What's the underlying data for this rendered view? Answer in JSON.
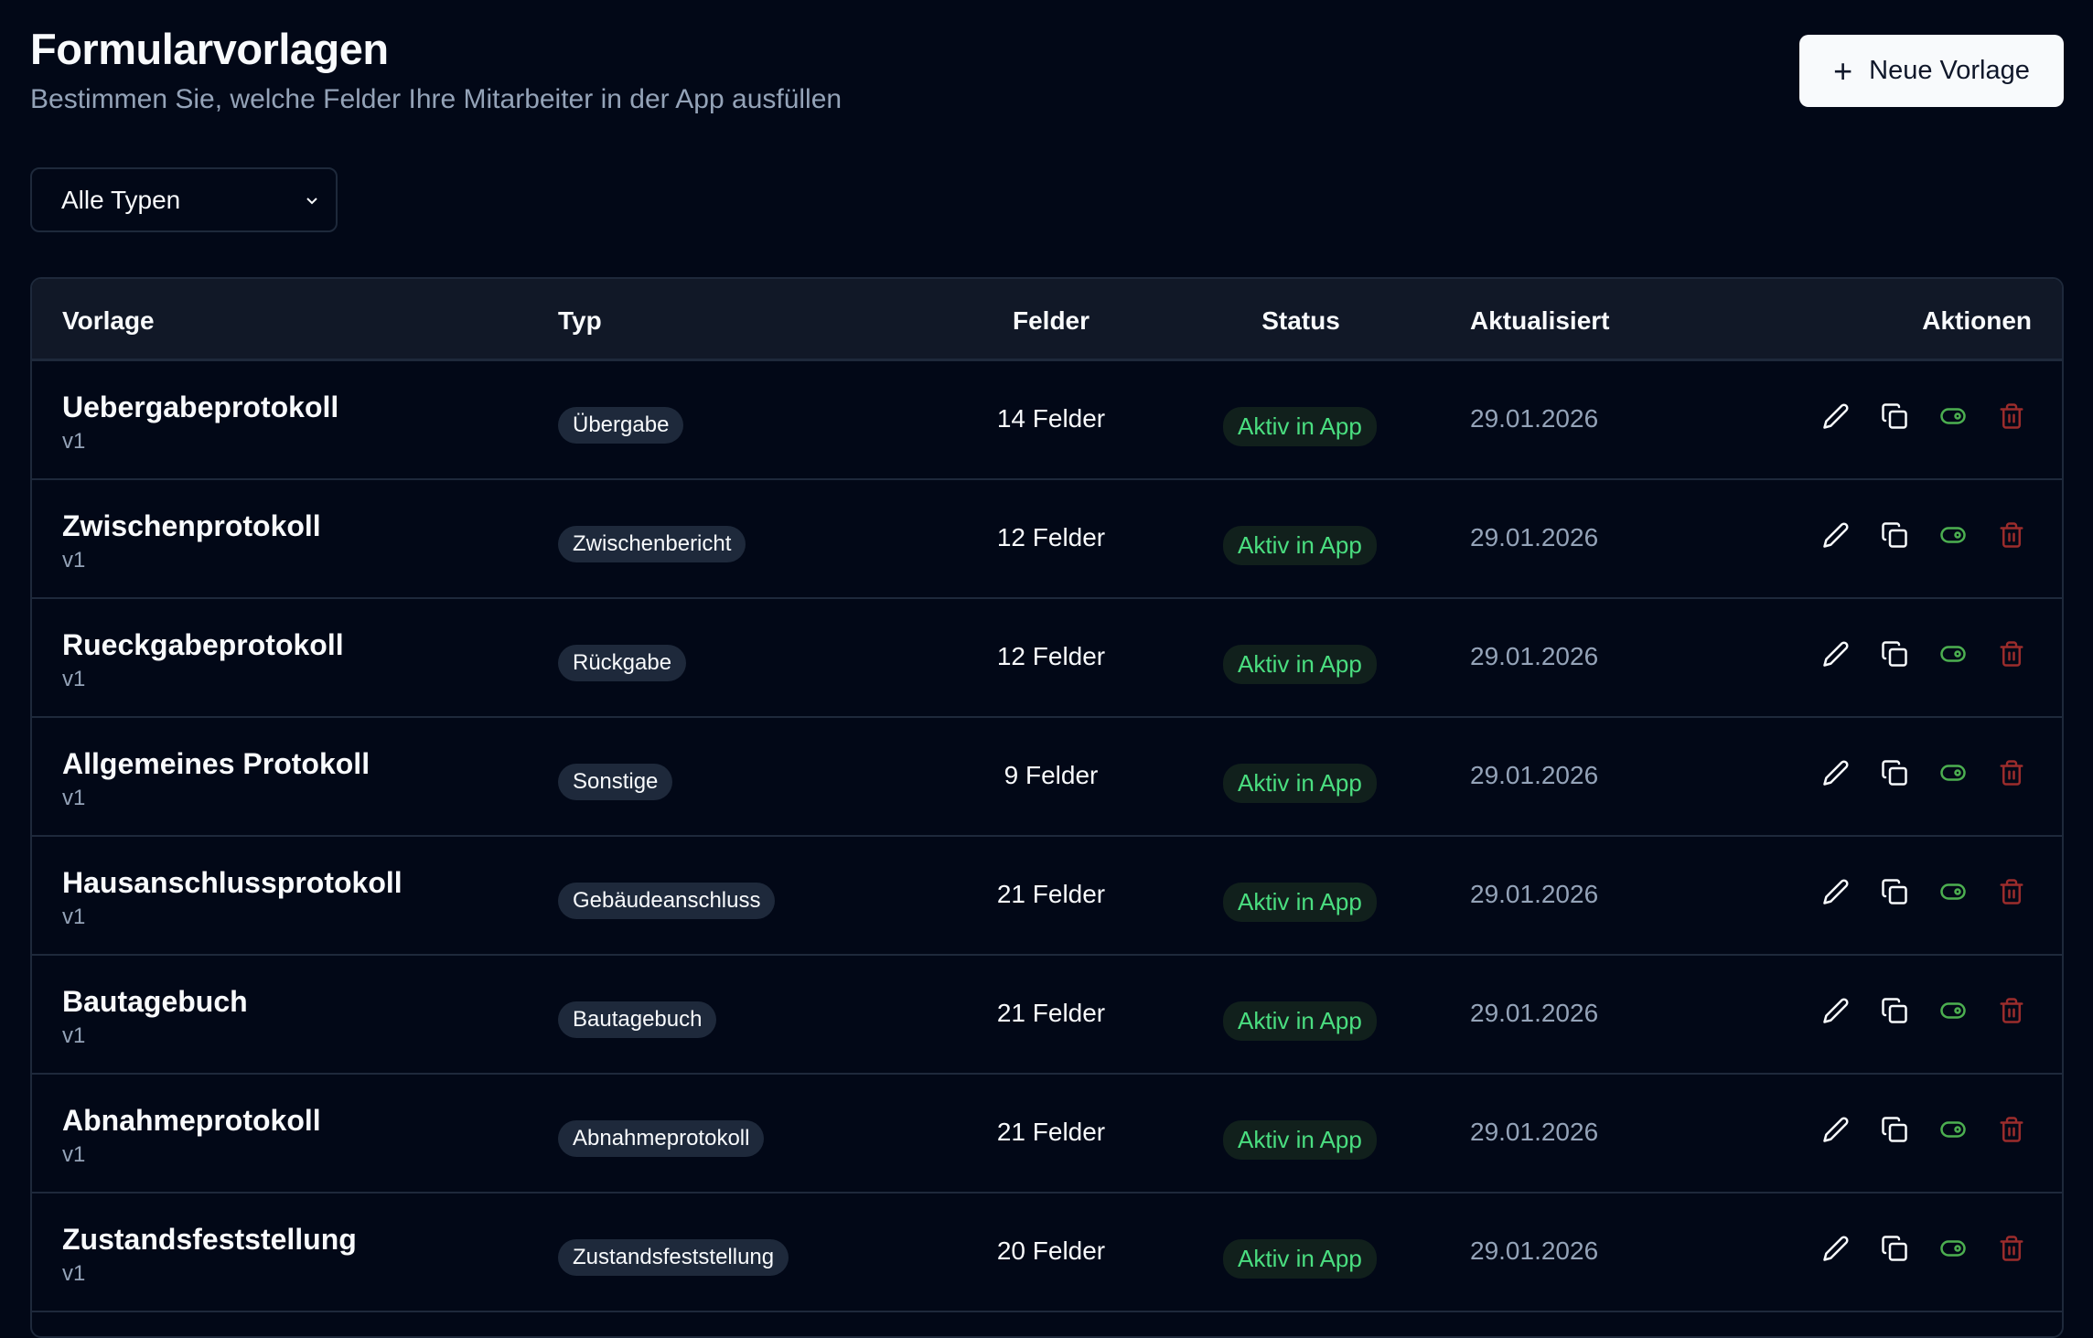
{
  "header": {
    "title": "Formularvorlagen",
    "subtitle": "Bestimmen Sie, welche Felder Ihre Mitarbeiter in der App ausfüllen",
    "new_button": "Neue Vorlage"
  },
  "filter": {
    "selected": "Alle Typen"
  },
  "table": {
    "columns": [
      "Vorlage",
      "Typ",
      "Felder",
      "Status",
      "Aktualisiert",
      "Aktionen"
    ],
    "rows": [
      {
        "name": "Uebergabeprotokoll",
        "version": "v1",
        "type": "Übergabe",
        "fields": "14 Felder",
        "status": "Aktiv in App",
        "updated": "29.01.2026"
      },
      {
        "name": "Zwischenprotokoll",
        "version": "v1",
        "type": "Zwischenbericht",
        "fields": "12 Felder",
        "status": "Aktiv in App",
        "updated": "29.01.2026"
      },
      {
        "name": "Rueckgabeprotokoll",
        "version": "v1",
        "type": "Rückgabe",
        "fields": "12 Felder",
        "status": "Aktiv in App",
        "updated": "29.01.2026"
      },
      {
        "name": "Allgemeines Protokoll",
        "version": "v1",
        "type": "Sonstige",
        "fields": "9 Felder",
        "status": "Aktiv in App",
        "updated": "29.01.2026"
      },
      {
        "name": "Hausanschlussprotokoll",
        "version": "v1",
        "type": "Gebäudeanschluss",
        "fields": "21 Felder",
        "status": "Aktiv in App",
        "updated": "29.01.2026"
      },
      {
        "name": "Bautagebuch",
        "version": "v1",
        "type": "Bautagebuch",
        "fields": "21 Felder",
        "status": "Aktiv in App",
        "updated": "29.01.2026"
      },
      {
        "name": "Abnahmeprotokoll",
        "version": "v1",
        "type": "Abnahmeprotokoll",
        "fields": "21 Felder",
        "status": "Aktiv in App",
        "updated": "29.01.2026"
      },
      {
        "name": "Zustandsfeststellung",
        "version": "v1",
        "type": "Zustandsfeststellung",
        "fields": "20 Felder",
        "status": "Aktiv in App",
        "updated": "29.01.2026"
      }
    ]
  },
  "colors": {
    "background": "#020817",
    "status_green": "#4ade80",
    "toggle_green": "#4caf50",
    "delete_red": "#9b2c2c"
  },
  "icons": [
    "plus-icon",
    "chevron-down-icon",
    "pencil-icon",
    "copy-icon",
    "toggle-icon",
    "trash-icon"
  ]
}
